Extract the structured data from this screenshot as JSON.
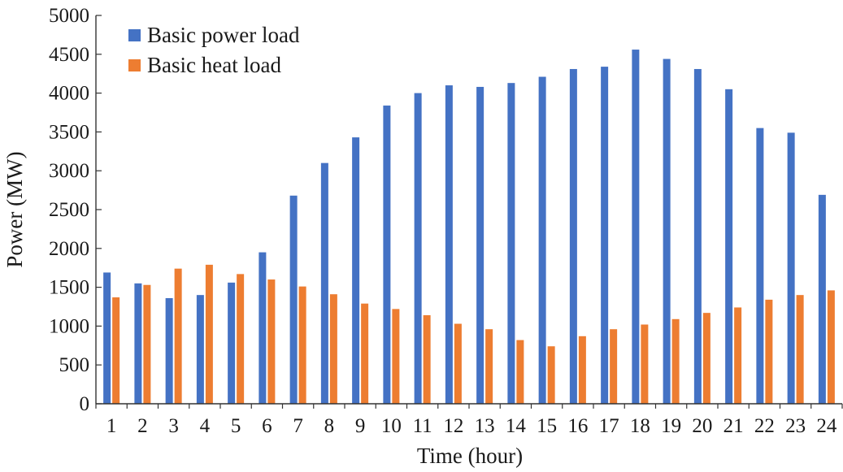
{
  "chart_data": {
    "type": "bar",
    "title": "",
    "xlabel": "Time (hour)",
    "ylabel": "Power (MW)",
    "ylim": [
      0,
      5000
    ],
    "yticks": [
      0,
      500,
      1000,
      1500,
      2000,
      2500,
      3000,
      3500,
      4000,
      4500,
      5000
    ],
    "grid": false,
    "legend_position": "top-left",
    "categories": [
      "1",
      "2",
      "3",
      "4",
      "5",
      "6",
      "7",
      "8",
      "9",
      "10",
      "11",
      "12",
      "13",
      "14",
      "15",
      "16",
      "17",
      "18",
      "19",
      "20",
      "21",
      "22",
      "23",
      "24"
    ],
    "series": [
      {
        "name": "Basic power load",
        "color": "#4472C4",
        "values": [
          1690,
          1550,
          1360,
          1400,
          1560,
          1950,
          2680,
          3100,
          3430,
          3840,
          4000,
          4100,
          4080,
          4130,
          4210,
          4310,
          4340,
          4560,
          4440,
          4310,
          4050,
          3550,
          3490,
          2690
        ]
      },
      {
        "name": "Basic heat load",
        "color": "#ED7D31",
        "values": [
          1370,
          1530,
          1740,
          1790,
          1670,
          1600,
          1510,
          1410,
          1290,
          1220,
          1140,
          1030,
          960,
          820,
          740,
          870,
          960,
          1020,
          1090,
          1170,
          1240,
          1340,
          1400,
          1460
        ]
      }
    ]
  }
}
